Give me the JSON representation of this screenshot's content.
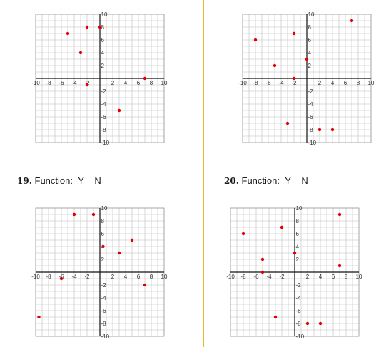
{
  "labels": {
    "q19": {
      "number": "19.",
      "text": "Function:",
      "y": "Y",
      "n": "N"
    },
    "q20": {
      "number": "20.",
      "text": "Function:",
      "y": "Y",
      "n": "N"
    }
  },
  "colors": {
    "divider": "#e8b931",
    "point": "#e00000",
    "grid": "#bdbdbd",
    "axis": "#111111"
  },
  "chart_data": [
    {
      "type": "scatter",
      "xlim": [
        -10,
        10
      ],
      "ylim": [
        -10,
        10
      ],
      "xticks": [
        "-10",
        "-8",
        "-6",
        "-4",
        "-2",
        "2",
        "4",
        "6",
        "8",
        "10"
      ],
      "yticks": [
        "10",
        "8",
        "6",
        "4",
        "2",
        "-2",
        "-4",
        "-6",
        "-8",
        "-10"
      ],
      "points": [
        [
          -5,
          7
        ],
        [
          -2,
          8
        ],
        [
          0,
          8
        ],
        [
          -3,
          4
        ],
        [
          -2,
          -1
        ],
        [
          7,
          0
        ],
        [
          3,
          -5
        ]
      ]
    },
    {
      "type": "scatter",
      "xlim": [
        -10,
        10
      ],
      "ylim": [
        -10,
        10
      ],
      "xticks": [
        "-10",
        "-8",
        "-6",
        "-4",
        "-2",
        "2",
        "4",
        "6",
        "8",
        "10"
      ],
      "yticks": [
        "10",
        "8",
        "6",
        "4",
        "2",
        "-2",
        "-4",
        "-6",
        "-8",
        "-10"
      ],
      "points": [
        [
          -8,
          6
        ],
        [
          -5,
          2
        ],
        [
          -2,
          7
        ],
        [
          0,
          3
        ],
        [
          -2,
          0
        ],
        [
          7,
          9
        ],
        [
          -3,
          -7
        ],
        [
          2,
          -8
        ],
        [
          4,
          -8
        ]
      ]
    },
    {
      "type": "scatter",
      "xlim": [
        -10,
        10
      ],
      "ylim": [
        -10,
        10
      ],
      "xticks": [
        "-10",
        "-8",
        "-6",
        "-4",
        "-2",
        "2",
        "4",
        "6",
        "8",
        "10"
      ],
      "yticks": [
        "10",
        "8",
        "6",
        "4",
        "2",
        "-2",
        "-4",
        "-6",
        "-8",
        "-10"
      ],
      "points": [
        [
          -4,
          9
        ],
        [
          -1,
          9
        ],
        [
          0.5,
          4
        ],
        [
          3,
          3
        ],
        [
          5,
          5
        ],
        [
          7,
          -2
        ],
        [
          -6,
          -1
        ],
        [
          -9.5,
          -7
        ]
      ]
    },
    {
      "type": "scatter",
      "xlim": [
        -10,
        10
      ],
      "ylim": [
        -10,
        10
      ],
      "xticks": [
        "-10",
        "-8",
        "-6",
        "-4",
        "-2",
        "2",
        "4",
        "6",
        "8",
        "10"
      ],
      "yticks": [
        "10",
        "8",
        "6",
        "4",
        "2",
        "-2",
        "-4",
        "-6",
        "-8",
        "-10"
      ],
      "points": [
        [
          -8,
          6
        ],
        [
          -2,
          7
        ],
        [
          -5,
          2
        ],
        [
          -5,
          0
        ],
        [
          0,
          3
        ],
        [
          7,
          9
        ],
        [
          7,
          1
        ],
        [
          -3,
          -7
        ],
        [
          2,
          -8
        ],
        [
          4,
          -8
        ]
      ]
    }
  ]
}
